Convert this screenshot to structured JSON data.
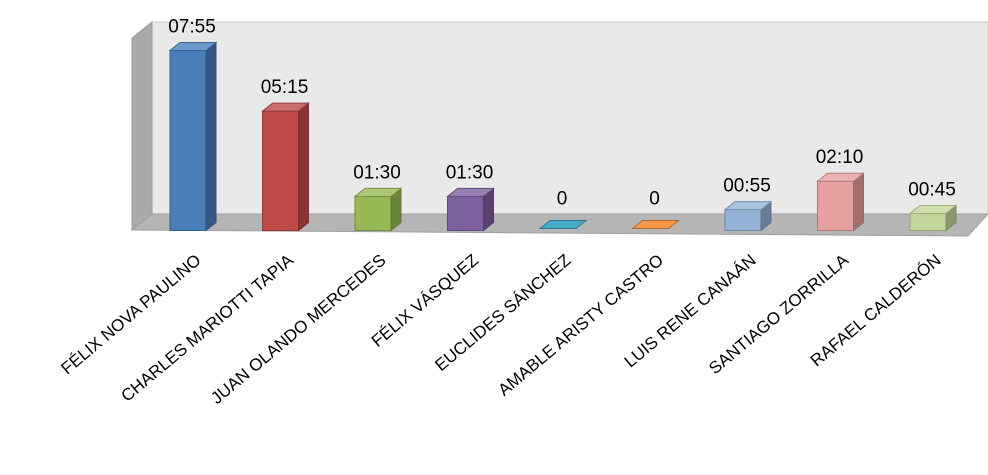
{
  "chart_data": {
    "type": "bar",
    "style": "3d-column",
    "title": "",
    "xlabel": "",
    "ylabel": "",
    "grid": false,
    "legend": "none",
    "categories": [
      "FÉLIX NOVA PAULINO",
      "CHARLES MARIOTTI TAPIA",
      "JUAN OLANDO MERCEDES",
      "FÉLIX  VÁSQUEZ",
      "EUCLIDES SÁNCHEZ",
      "AMABLE ARISTY CASTRO",
      "LUIS RENE CANAÁN",
      "SANTIAGO ZORRILLA",
      "RAFAEL CALDERÓN"
    ],
    "values_minutes": [
      475,
      315,
      90,
      90,
      0,
      0,
      55,
      130,
      45
    ],
    "data_labels": [
      "07:55",
      "05:15",
      "01:30",
      "01:30",
      "0",
      "0",
      "00:55",
      "02:10",
      "00:45"
    ],
    "ylim": [
      0,
      475
    ],
    "colors": [
      "#4A7EBB",
      "#BE4B48",
      "#98B954",
      "#7D60A0",
      "#46AAC5",
      "#F79646",
      "#95B3D7",
      "#E6A09E",
      "#C4D79B"
    ]
  }
}
